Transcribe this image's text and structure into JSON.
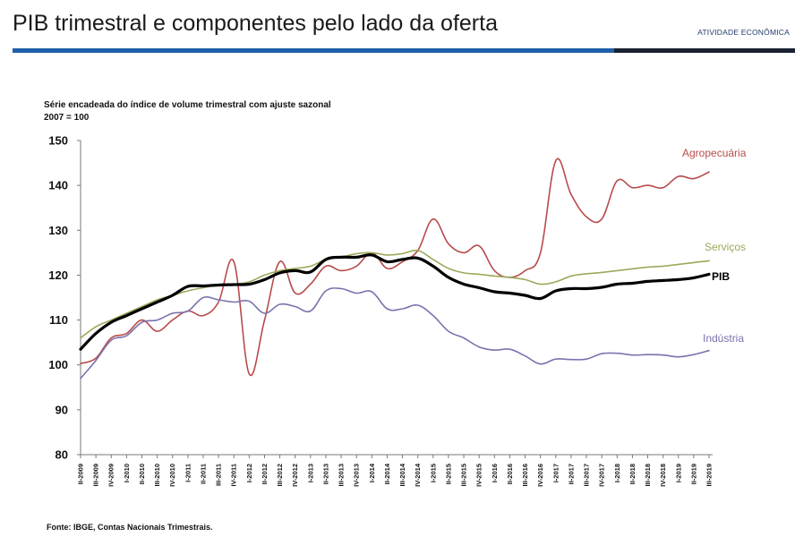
{
  "header": {
    "title": "PIB trimestral e componentes pelo lado da oferta",
    "section": "ATIVIDADE ECONÔMICA"
  },
  "colors": {
    "accent_bar": "#1f5fa8",
    "dark_bar": "#1a2233",
    "agro": "#b84b4b",
    "servicos": "#9aaa5a",
    "pib": "#000000",
    "industria": "#7a72ad"
  },
  "footer": {
    "source": "Fonte: IBGE, Contas Nacionais Trimestrais."
  },
  "chart_data": {
    "type": "line",
    "subtitle_line1": "Série encadeada do índice de volume trimestral com ajuste sazonal",
    "subtitle_line2": "2007 = 100",
    "ylim": [
      80,
      150
    ],
    "yticks": [
      80,
      90,
      100,
      110,
      120,
      130,
      140,
      150
    ],
    "categories": [
      "II-2009",
      "III-2009",
      "IV-2009",
      "I-2010",
      "II-2010",
      "III-2010",
      "IV-2010",
      "I-2011",
      "II-2011",
      "III-2011",
      "IV-2011",
      "I-2012",
      "II-2012",
      "III-2012",
      "IV-2012",
      "I-2013",
      "II-2013",
      "III-2013",
      "IV-2013",
      "I-2014",
      "II-2014",
      "III-2014",
      "IV-2014",
      "I-2015",
      "II-2015",
      "III-2015",
      "IV-2015",
      "I-2016",
      "II-2016",
      "III-2016",
      "IV-2016",
      "I-2017",
      "II-2017",
      "III-2017",
      "IV-2017",
      "I-2018",
      "II-2018",
      "III-2018",
      "IV-2018",
      "I-2019",
      "II-2019",
      "III-2019"
    ],
    "series": [
      {
        "name": "Agropecuária",
        "color": "#b84b4b",
        "width": 1.6,
        "values": [
          100.3,
          101.5,
          106,
          107,
          110,
          107.5,
          110,
          112,
          111,
          114,
          123,
          98,
          110,
          123,
          116,
          118,
          122,
          121,
          122,
          125,
          121.5,
          123,
          125.5,
          132.5,
          127,
          125,
          126.5,
          121,
          119.5,
          121,
          125,
          145.5,
          138,
          133,
          132.5,
          141,
          139.5,
          140,
          139.5,
          142,
          141.5,
          143
        ]
      },
      {
        "name": "Serviços",
        "color": "#9aaa5a",
        "width": 1.6,
        "values": [
          106,
          108.5,
          110,
          111.5,
          113,
          114.5,
          115.5,
          116.5,
          117.2,
          117.8,
          118,
          118.5,
          120,
          121,
          121.5,
          122,
          123.5,
          124,
          124.8,
          125,
          124.5,
          124.8,
          125.5,
          123.5,
          121.5,
          120.5,
          120.2,
          119.8,
          119.5,
          119,
          118,
          118.5,
          119.8,
          120.3,
          120.6,
          121,
          121.4,
          121.8,
          122,
          122.4,
          122.8,
          123.2
        ]
      },
      {
        "name": "PIB",
        "color": "#000000",
        "width": 3.2,
        "values": [
          103.5,
          107,
          109.5,
          111,
          112.5,
          114,
          115.5,
          117.5,
          117.6,
          117.8,
          117.9,
          118,
          119,
          120.5,
          121,
          120.7,
          123.5,
          124,
          124,
          124.5,
          123,
          123.5,
          123.8,
          122,
          119.5,
          118,
          117.2,
          116.3,
          116,
          115.5,
          114.8,
          116.5,
          117,
          117,
          117.3,
          118,
          118.2,
          118.6,
          118.8,
          119,
          119.4,
          120.2
        ]
      },
      {
        "name": "Indústria",
        "color": "#7a72ad",
        "width": 1.6,
        "values": [
          97,
          101,
          105.5,
          106.5,
          109.5,
          110,
          111.5,
          112,
          115,
          114.5,
          114,
          114.2,
          111.5,
          113.5,
          113,
          112,
          116.5,
          117,
          116,
          116.3,
          112.5,
          112.5,
          113.3,
          111,
          107.5,
          106,
          104,
          103.3,
          103.5,
          102,
          100.2,
          101.3,
          101.2,
          101.3,
          102.5,
          102.6,
          102.2,
          102.3,
          102.2,
          101.8,
          102.3,
          103.2
        ]
      }
    ]
  }
}
